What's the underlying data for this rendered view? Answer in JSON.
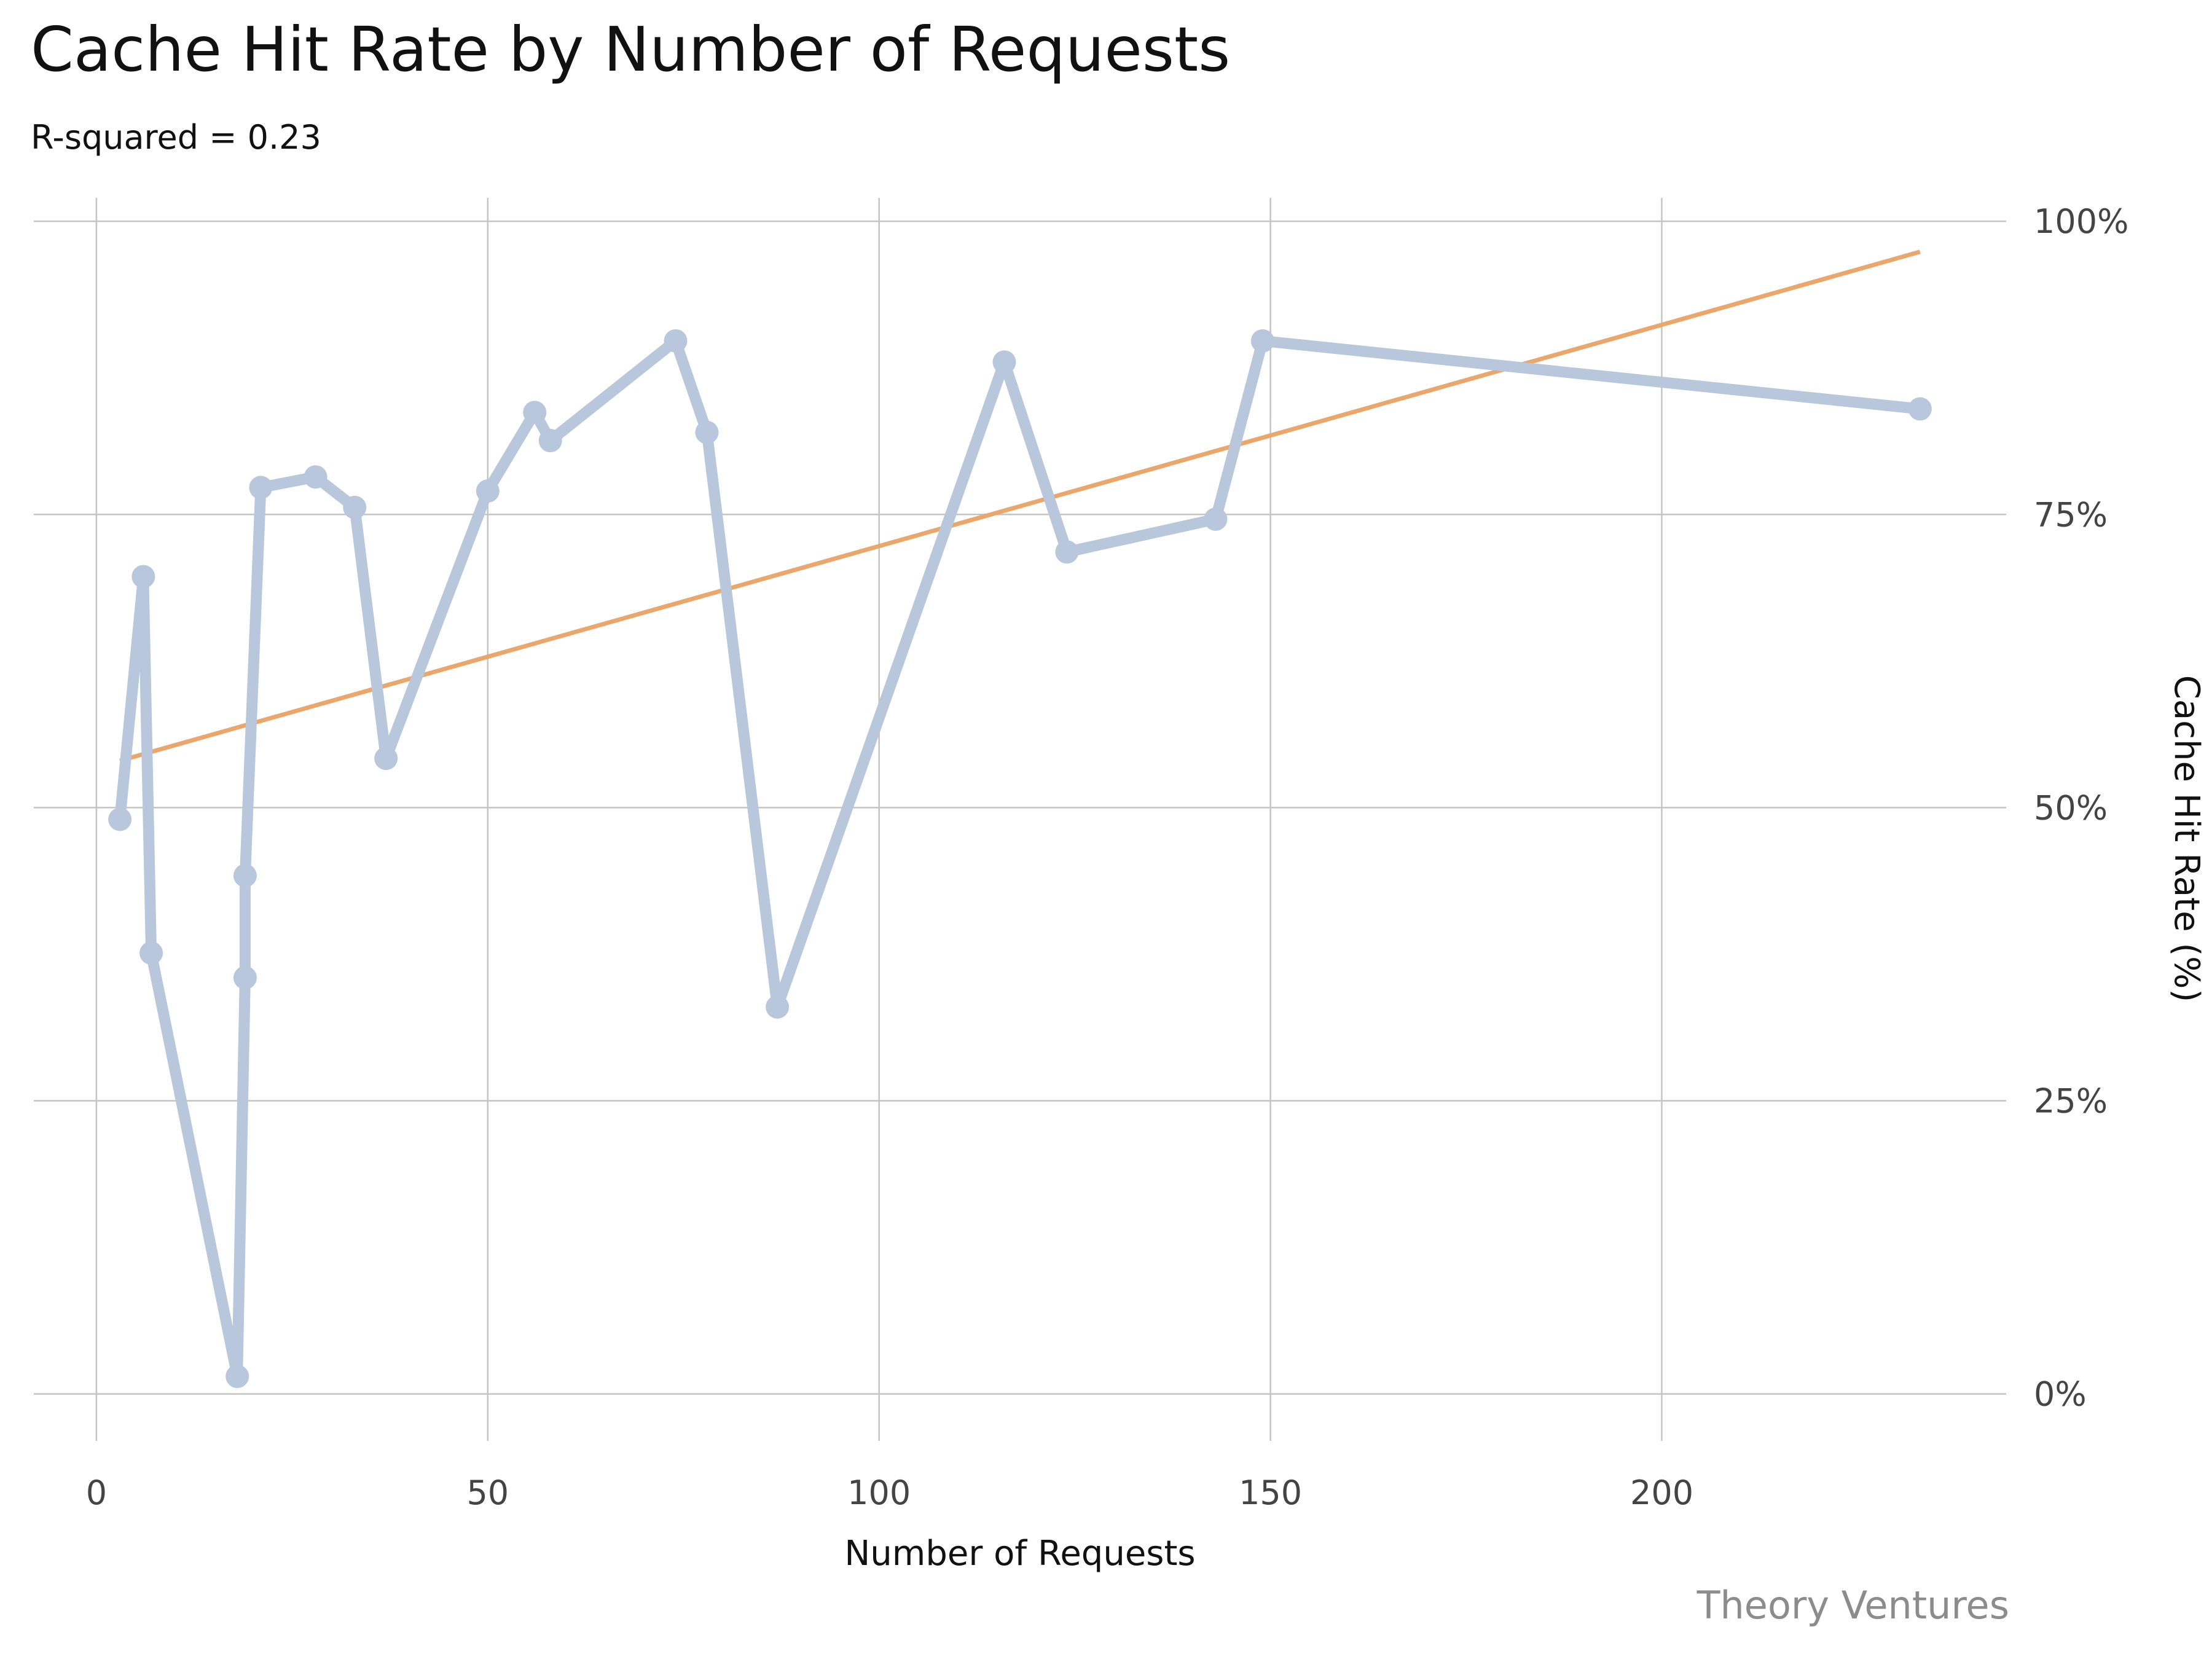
{
  "chart_data": {
    "type": "line",
    "title": "Cache Hit Rate by Number of Requests",
    "subtitle": "R-squared = 0.23",
    "xlabel": "Number of Requests",
    "ylabel": "Cache Hit Rate (%)",
    "source": "Theory Ventures",
    "xlim": [
      -8,
      244
    ],
    "ylim": [
      -4,
      102
    ],
    "x_ticks": [
      0,
      50,
      100,
      150,
      200
    ],
    "x_tick_labels": [
      "0",
      "50",
      "100",
      "150",
      "200"
    ],
    "y_ticks": [
      0,
      25,
      50,
      75,
      100
    ],
    "y_tick_labels": [
      "0%",
      "25%",
      "50%",
      "75%",
      "100%"
    ],
    "grid": true,
    "y_axis_position": "right",
    "series": [
      {
        "name": "Cache Hit Rate",
        "color": "#b8c7db",
        "x": [
          3,
          6,
          7,
          18,
          19,
          19,
          21,
          28,
          33,
          37,
          50,
          56,
          58,
          74,
          78,
          87,
          116,
          124,
          143,
          149,
          233
        ],
        "y": [
          49.0,
          69.7,
          37.6,
          1.5,
          35.5,
          44.2,
          77.3,
          78.2,
          75.6,
          54.2,
          77.0,
          83.7,
          81.3,
          89.8,
          82.0,
          33.0,
          88.0,
          71.8,
          74.6,
          89.8,
          84.0
        ]
      }
    ],
    "trendline": {
      "name": "Linear fit",
      "color": "#eaa66b",
      "x": [
        3,
        233
      ],
      "y": [
        54.0,
        97.4
      ]
    }
  }
}
